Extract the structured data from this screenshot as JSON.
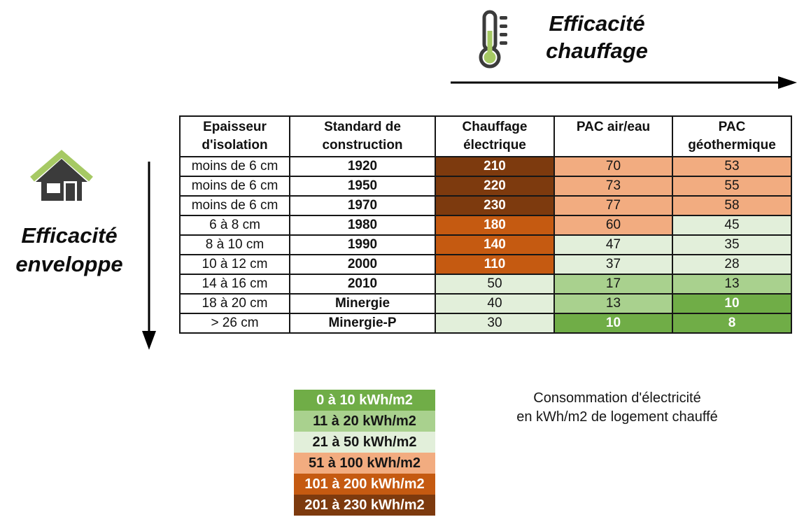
{
  "top_axis": {
    "line1": "Efficacité",
    "line2": "chauffage"
  },
  "left_axis": {
    "line1": "Efficacité",
    "line2": "enveloppe"
  },
  "icons": {
    "top_axis_icon": "thermometer-icon",
    "left_axis_icon": "house-icon",
    "top_axis_arrow": "arrow-right-icon",
    "left_axis_arrow": "arrow-down-icon"
  },
  "caption": {
    "line1": "Consommation d'électricité",
    "line2": "en kWh/m2 de logement chauffé"
  },
  "chart_data": {
    "type": "heatmap-table",
    "x_axis_label": "Efficacité chauffage",
    "y_axis_label": "Efficacité enveloppe",
    "unit": "kWh/m2",
    "columns": [
      {
        "line1": "Epaisseur",
        "line2": "d'isolation"
      },
      {
        "line1": "Standard de",
        "line2": "construction"
      },
      {
        "line1": "Chauffage",
        "line2": "électrique"
      },
      {
        "line1": "PAC air/eau",
        "line2": ""
      },
      {
        "line1": "PAC",
        "line2": "géothermique"
      }
    ],
    "rows": [
      {
        "isolation": "moins de 6 cm",
        "standard": "1920",
        "values": [
          {
            "v": "210",
            "band": "201-230"
          },
          {
            "v": "70",
            "band": "51-100"
          },
          {
            "v": "53",
            "band": "51-100"
          }
        ]
      },
      {
        "isolation": "moins de 6 cm",
        "standard": "1950",
        "values": [
          {
            "v": "220",
            "band": "201-230"
          },
          {
            "v": "73",
            "band": "51-100"
          },
          {
            "v": "55",
            "band": "51-100"
          }
        ]
      },
      {
        "isolation": "moins de 6 cm",
        "standard": "1970",
        "values": [
          {
            "v": "230",
            "band": "201-230"
          },
          {
            "v": "77",
            "band": "51-100"
          },
          {
            "v": "58",
            "band": "51-100"
          }
        ]
      },
      {
        "isolation": "6 à 8 cm",
        "standard": "1980",
        "values": [
          {
            "v": "180",
            "band": "101-200"
          },
          {
            "v": "60",
            "band": "51-100"
          },
          {
            "v": "45",
            "band": "21-50"
          }
        ]
      },
      {
        "isolation": "8 à 10 cm",
        "standard": "1990",
        "values": [
          {
            "v": "140",
            "band": "101-200"
          },
          {
            "v": "47",
            "band": "21-50"
          },
          {
            "v": "35",
            "band": "21-50"
          }
        ]
      },
      {
        "isolation": "10 à 12 cm",
        "standard": "2000",
        "values": [
          {
            "v": "110",
            "band": "101-200"
          },
          {
            "v": "37",
            "band": "21-50"
          },
          {
            "v": "28",
            "band": "21-50"
          }
        ]
      },
      {
        "isolation": "14 à 16 cm",
        "standard": "2010",
        "values": [
          {
            "v": "50",
            "band": "21-50"
          },
          {
            "v": "17",
            "band": "11-20"
          },
          {
            "v": "13",
            "band": "11-20"
          }
        ]
      },
      {
        "isolation": "18 à 20 cm",
        "standard": "Minergie",
        "values": [
          {
            "v": "40",
            "band": "21-50"
          },
          {
            "v": "13",
            "band": "11-20"
          },
          {
            "v": "10",
            "band": "0-10"
          }
        ]
      },
      {
        "isolation": "> 26 cm",
        "standard": "Minergie-P",
        "values": [
          {
            "v": "30",
            "band": "21-50"
          },
          {
            "v": "10",
            "band": "0-10"
          },
          {
            "v": "8",
            "band": "0-10"
          }
        ]
      }
    ],
    "legend": [
      {
        "label": "0 à 10 kWh/m2",
        "band": "0-10"
      },
      {
        "label": "11 à 20 kWh/m2",
        "band": "11-20"
      },
      {
        "label": "21 à 50 kWh/m2",
        "band": "21-50"
      },
      {
        "label": "51 à 100 kWh/m2",
        "band": "51-100"
      },
      {
        "label": "101 à 200 kWh/m2",
        "band": "101-200"
      },
      {
        "label": "201 à 230 kWh/m2",
        "band": "201-230"
      }
    ],
    "bands": {
      "0-10": {
        "bg": "#70AD47",
        "fg": "#FFFFFF"
      },
      "11-20": {
        "bg": "#A9D18E",
        "fg": "#161616"
      },
      "21-50": {
        "bg": "#E2EFDA",
        "fg": "#161616"
      },
      "51-100": {
        "bg": "#F2AC80",
        "fg": "#161616"
      },
      "101-200": {
        "bg": "#C55A11",
        "fg": "#FFFFFF"
      },
      "201-230": {
        "bg": "#7D3A0E",
        "fg": "#FFFFFF"
      }
    },
    "icon_colors": {
      "green": "#A6C964",
      "dark": "#3B3B3B",
      "arrow": "#000000"
    }
  }
}
